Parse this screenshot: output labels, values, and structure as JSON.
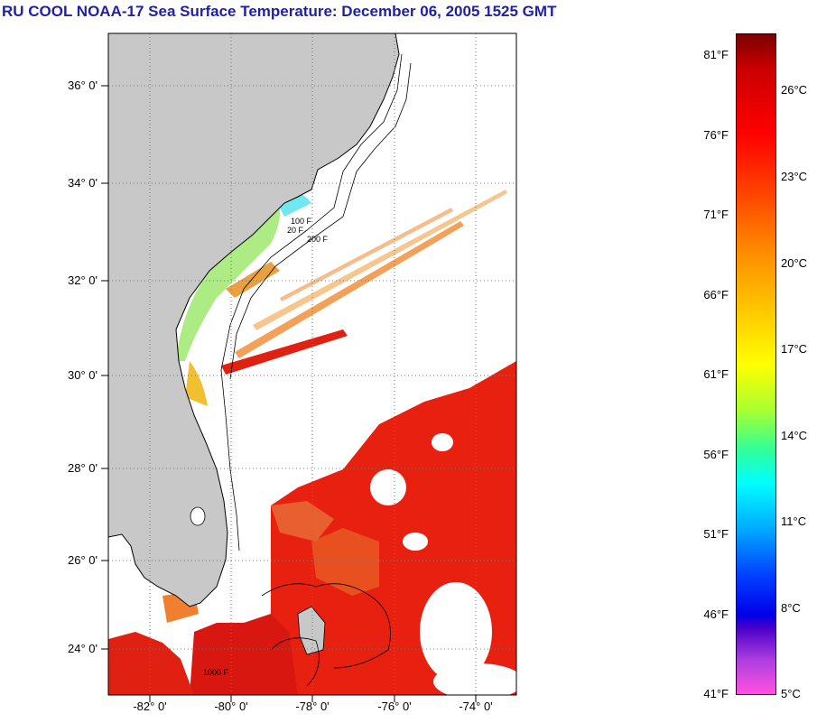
{
  "title": "RU COOL  NOAA-17  Sea Surface Temperature:  December 06, 2005 1525 GMT",
  "map": {
    "lat_labels": [
      "36° 0'",
      "34° 0'",
      "32° 0'",
      "30° 0'",
      "28° 0'",
      "26° 0'",
      "24° 0'"
    ],
    "lon_labels": [
      "-82° 0'",
      "-80° 0'",
      "-78° 0'",
      "-76° 0'",
      "-74° 0'"
    ],
    "contour_labels": [
      "20 F",
      "100 F",
      "200 F",
      "1000 F"
    ],
    "colors": {
      "land": "#c8c8c8",
      "ocean_missing": "#ffffff",
      "grid": "#666666"
    }
  },
  "colorbar": {
    "fahrenheit": [
      "81°F",
      "76°F",
      "71°F",
      "66°F",
      "61°F",
      "56°F",
      "51°F",
      "46°F",
      "41°F"
    ],
    "celsius": [
      "26°C",
      "23°C",
      "20°C",
      "17°C",
      "14°C",
      "11°C",
      "8°C",
      "5°C"
    ]
  }
}
